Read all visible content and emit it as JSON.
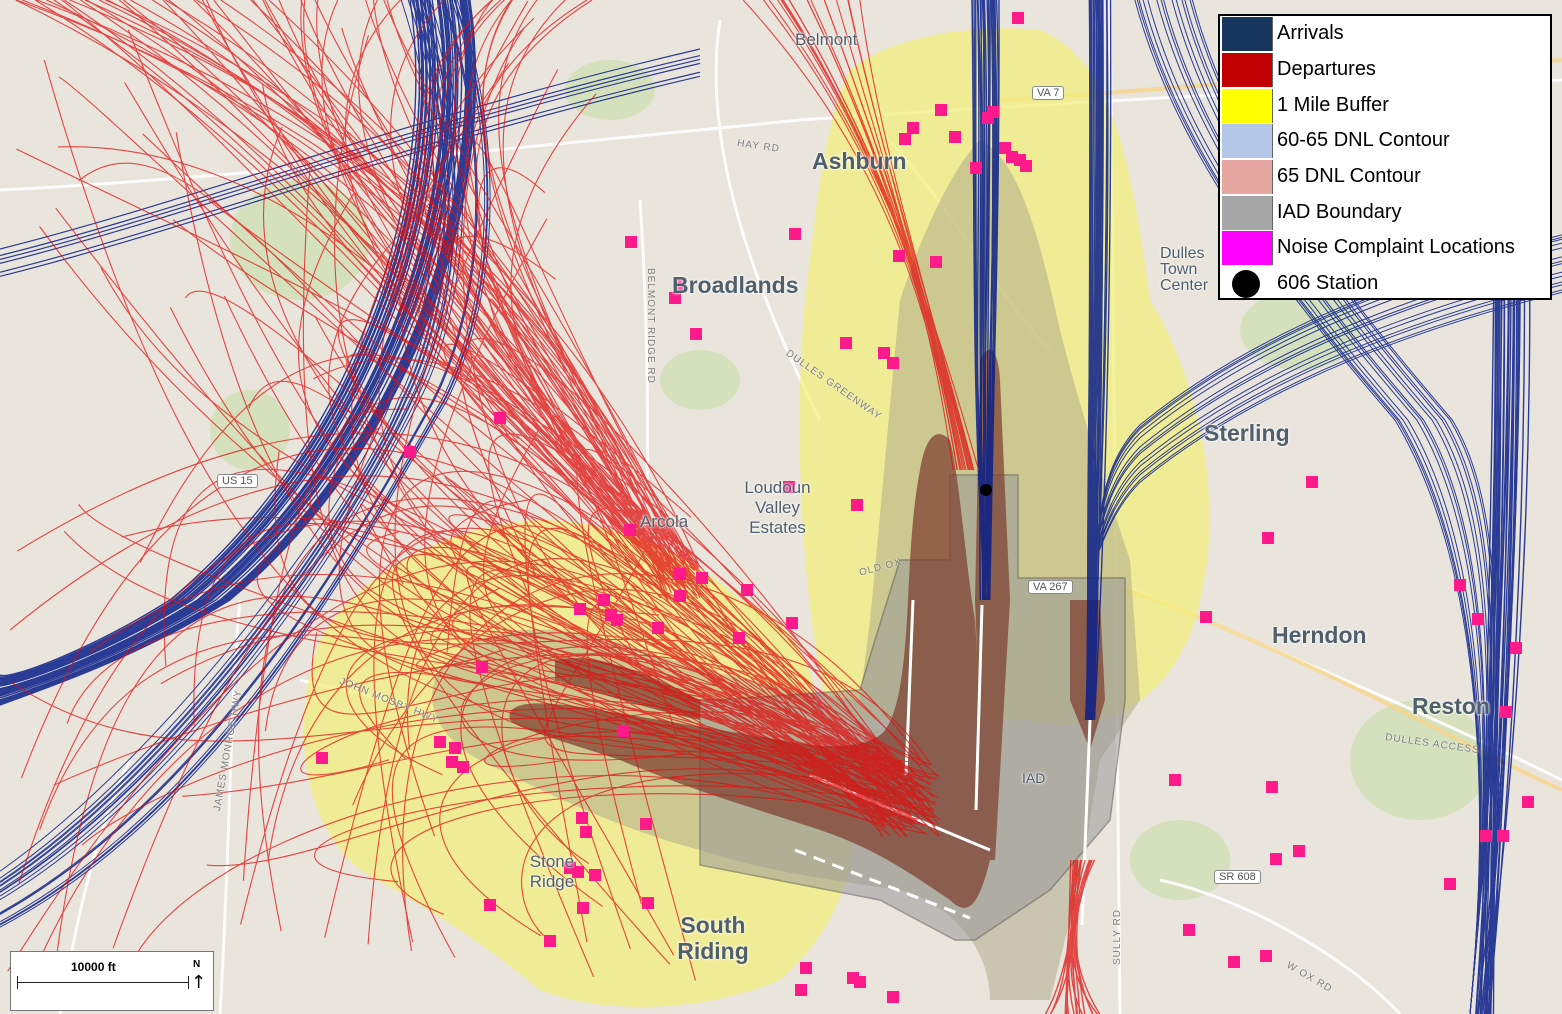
{
  "legend": {
    "items": [
      {
        "label": "Arrivals",
        "color": "#17375e"
      },
      {
        "label": "Departures",
        "color": "#c00000"
      },
      {
        "label": "1 Mile Buffer",
        "color": "#ffff00"
      },
      {
        "label": "60-65  DNL Contour",
        "color": "#b4c7e7"
      },
      {
        "label": "65 DNL Contour",
        "color": "#e6a7a3"
      },
      {
        "label": "IAD Boundary",
        "color": "#a6a6a6"
      },
      {
        "label": "Noise Complaint Locations",
        "color": "#ff00ff"
      },
      {
        "label": "606 Station",
        "color": "#000000"
      }
    ]
  },
  "places": {
    "belmont": "Belmont",
    "ashburn": "Ashburn",
    "broadlands": "Broadlands",
    "dulles_town_center": "Dulles Town Center",
    "sterling": "Sterling",
    "loudoun_valley": "Loudoun Valley Estates",
    "arcola": "Arcola",
    "herndon": "Herndon",
    "reston": "Reston",
    "stone_ridge": "Stone Ridge",
    "south_riding": "South Riding",
    "iad": "IAD"
  },
  "roads": {
    "va7": "VA 7",
    "va267": "VA 267",
    "us15": "US 15",
    "sr608": "SR 608",
    "hay_rd": "HAY RD",
    "belmont_ridge": "BELMONT RIDGE RD",
    "dulles_greenway": "DULLES GREENWAY",
    "john_mosby": "JOHN MOSBY HWY",
    "james_monroe": "JAMES MONROE HWY",
    "sully_rd": "SULLY RD",
    "dulles_access": "DULLES ACCESS",
    "w_ox_rd": "W OX RD",
    "old_ox": "OLD OX"
  },
  "scalebar": {
    "label": "10000 ft",
    "north": "N"
  },
  "colors": {
    "map_bg": "#e9e4dc",
    "arrivals": "#0a1f8a",
    "departures": "#e01010",
    "buffer": "#f3ef7a",
    "contour_60": "#b9b39a",
    "contour_65": "#8a4b3a",
    "iad_boundary": "#8e8e8e",
    "complaint": "#ff1a8c"
  }
}
